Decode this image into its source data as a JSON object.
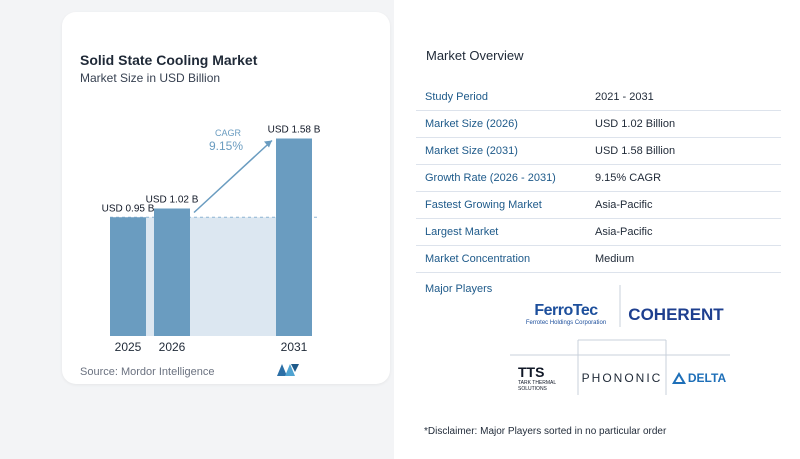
{
  "chart_card": {
    "title": "Solid State Cooling Market",
    "subtitle": "Market Size in USD Billion",
    "source": "Source:  Mordor Intelligence"
  },
  "chart_data": {
    "type": "bar",
    "title": "Solid State Cooling Market",
    "subtitle": "Market Size in USD Billion",
    "categories": [
      "2025",
      "2026",
      "2031"
    ],
    "values": [
      0.95,
      1.02,
      1.58
    ],
    "data_labels": [
      "USD 0.95 B",
      "USD 1.02 B",
      "USD 1.58 B"
    ],
    "ylim": [
      0,
      1.6
    ],
    "annotation": {
      "label": "CAGR",
      "value": "9.15%"
    },
    "colors": {
      "bar": "#6a9cc0",
      "reference_fill": "#dce7f1",
      "reference_line": "#8fb6d4",
      "arrow": "#6a9cc0"
    },
    "grid": false,
    "legend": "none"
  },
  "overview": {
    "title": "Market Overview",
    "rows": [
      {
        "label": "Study Period",
        "value": "2021 - 2031"
      },
      {
        "label": "Market Size (2026)",
        "value": "USD 1.02 Billion"
      },
      {
        "label": "Market Size (2031)",
        "value": "USD 1.58 Billion"
      },
      {
        "label": "Growth Rate (2026 - 2031)",
        "value": "9.15% CAGR"
      },
      {
        "label": "Fastest Growing Market",
        "value": "Asia-Pacific"
      },
      {
        "label": "Largest Market",
        "value": "Asia-Pacific"
      },
      {
        "label": "Market Concentration",
        "value": "Medium"
      }
    ]
  },
  "players": {
    "title": "Major Players",
    "logos": [
      {
        "name": "Ferrotec",
        "text": "FerroTec",
        "sub": "Ferrotec Holdings Corporation"
      },
      {
        "name": "Coherent",
        "text": "COHERENT"
      },
      {
        "name": "TTS",
        "text": "TTS",
        "sub": "TARK THERMAL SOLUTIONS"
      },
      {
        "name": "Phononic",
        "text": "PHONONIC"
      },
      {
        "name": "Delta",
        "text": "DELTA"
      }
    ],
    "disclaimer": "*Disclaimer: Major Players sorted in no particular order"
  }
}
